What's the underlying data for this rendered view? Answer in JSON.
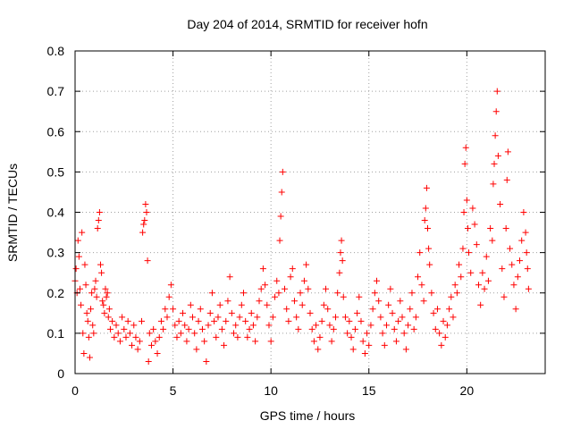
{
  "chart_data": {
    "type": "scatter",
    "title": "Day 204 of 2014, SRMTID for receiver hofn",
    "xlabel": "GPS time / hours",
    "ylabel": "SRMTID / TECUs",
    "xlim": [
      0,
      24
    ],
    "ylim": [
      0,
      0.8
    ],
    "xticks": [
      0,
      5,
      10,
      15,
      20
    ],
    "yticks": [
      0,
      0.1,
      0.2,
      0.3,
      0.4,
      0.5,
      0.6,
      0.7,
      0.8
    ],
    "xtick_labels": [
      "0",
      "5",
      "10",
      "15",
      "20"
    ],
    "ytick_labels": [
      "0",
      "0.1",
      "0.2",
      "0.3",
      "0.4",
      "0.5",
      "0.6",
      "0.7",
      "0.8"
    ],
    "grid": true,
    "marker": "+",
    "color": "#ff0000",
    "series": [
      {
        "name": "SRMTID",
        "points": [
          [
            0.0,
            0.23
          ],
          [
            0.05,
            0.26
          ],
          [
            0.1,
            0.2
          ],
          [
            0.15,
            0.33
          ],
          [
            0.2,
            0.29
          ],
          [
            0.25,
            0.21
          ],
          [
            0.3,
            0.17
          ],
          [
            0.35,
            0.35
          ],
          [
            0.4,
            0.1
          ],
          [
            0.45,
            0.05
          ],
          [
            0.5,
            0.27
          ],
          [
            0.55,
            0.22
          ],
          [
            0.6,
            0.15
          ],
          [
            0.65,
            0.13
          ],
          [
            0.7,
            0.09
          ],
          [
            0.75,
            0.04
          ],
          [
            0.8,
            0.16
          ],
          [
            0.85,
            0.2
          ],
          [
            0.9,
            0.12
          ],
          [
            0.95,
            0.1
          ],
          [
            1.0,
            0.21
          ],
          [
            1.05,
            0.23
          ],
          [
            1.1,
            0.19
          ],
          [
            1.15,
            0.36
          ],
          [
            1.2,
            0.38
          ],
          [
            1.25,
            0.4
          ],
          [
            1.3,
            0.27
          ],
          [
            1.35,
            0.25
          ],
          [
            1.4,
            0.18
          ],
          [
            1.45,
            0.17
          ],
          [
            1.5,
            0.15
          ],
          [
            1.55,
            0.21
          ],
          [
            1.6,
            0.19
          ],
          [
            1.65,
            0.2
          ],
          [
            1.7,
            0.14
          ],
          [
            1.75,
            0.16
          ],
          [
            1.8,
            0.11
          ],
          [
            1.9,
            0.13
          ],
          [
            2.0,
            0.09
          ],
          [
            2.1,
            0.12
          ],
          [
            2.2,
            0.1
          ],
          [
            2.3,
            0.08
          ],
          [
            2.4,
            0.14
          ],
          [
            2.5,
            0.11
          ],
          [
            2.6,
            0.09
          ],
          [
            2.7,
            0.13
          ],
          [
            2.8,
            0.1
          ],
          [
            2.9,
            0.07
          ],
          [
            3.0,
            0.12
          ],
          [
            3.1,
            0.09
          ],
          [
            3.2,
            0.06
          ],
          [
            3.3,
            0.08
          ],
          [
            3.4,
            0.13
          ],
          [
            3.45,
            0.35
          ],
          [
            3.5,
            0.37
          ],
          [
            3.55,
            0.38
          ],
          [
            3.6,
            0.42
          ],
          [
            3.65,
            0.4
          ],
          [
            3.7,
            0.28
          ],
          [
            3.75,
            0.03
          ],
          [
            3.8,
            0.1
          ],
          [
            3.9,
            0.07
          ],
          [
            4.0,
            0.11
          ],
          [
            4.1,
            0.08
          ],
          [
            4.2,
            0.05
          ],
          [
            4.3,
            0.09
          ],
          [
            4.4,
            0.13
          ],
          [
            4.5,
            0.11
          ],
          [
            4.6,
            0.16
          ],
          [
            4.7,
            0.14
          ],
          [
            4.8,
            0.19
          ],
          [
            4.9,
            0.22
          ],
          [
            5.0,
            0.16
          ],
          [
            5.1,
            0.12
          ],
          [
            5.2,
            0.09
          ],
          [
            5.3,
            0.13
          ],
          [
            5.4,
            0.1
          ],
          [
            5.5,
            0.15
          ],
          [
            5.6,
            0.12
          ],
          [
            5.7,
            0.08
          ],
          [
            5.8,
            0.11
          ],
          [
            5.9,
            0.17
          ],
          [
            6.0,
            0.14
          ],
          [
            6.1,
            0.1
          ],
          [
            6.2,
            0.06
          ],
          [
            6.3,
            0.13
          ],
          [
            6.4,
            0.16
          ],
          [
            6.5,
            0.11
          ],
          [
            6.6,
            0.08
          ],
          [
            6.7,
            0.03
          ],
          [
            6.8,
            0.12
          ],
          [
            6.9,
            0.15
          ],
          [
            7.0,
            0.2
          ],
          [
            7.1,
            0.13
          ],
          [
            7.2,
            0.09
          ],
          [
            7.3,
            0.14
          ],
          [
            7.4,
            0.17
          ],
          [
            7.5,
            0.11
          ],
          [
            7.6,
            0.07
          ],
          [
            7.7,
            0.13
          ],
          [
            7.8,
            0.18
          ],
          [
            7.9,
            0.24
          ],
          [
            8.0,
            0.15
          ],
          [
            8.1,
            0.1
          ],
          [
            8.2,
            0.12
          ],
          [
            8.3,
            0.09
          ],
          [
            8.4,
            0.14
          ],
          [
            8.5,
            0.17
          ],
          [
            8.6,
            0.2
          ],
          [
            8.7,
            0.13
          ],
          [
            8.8,
            0.09
          ],
          [
            8.9,
            0.11
          ],
          [
            9.0,
            0.15
          ],
          [
            9.1,
            0.12
          ],
          [
            9.2,
            0.08
          ],
          [
            9.3,
            0.14
          ],
          [
            9.4,
            0.18
          ],
          [
            9.5,
            0.21
          ],
          [
            9.6,
            0.26
          ],
          [
            9.7,
            0.22
          ],
          [
            9.8,
            0.17
          ],
          [
            9.9,
            0.12
          ],
          [
            10.0,
            0.08
          ],
          [
            10.1,
            0.14
          ],
          [
            10.2,
            0.19
          ],
          [
            10.3,
            0.23
          ],
          [
            10.4,
            0.2
          ],
          [
            10.45,
            0.33
          ],
          [
            10.5,
            0.39
          ],
          [
            10.55,
            0.45
          ],
          [
            10.6,
            0.5
          ],
          [
            10.7,
            0.21
          ],
          [
            10.8,
            0.16
          ],
          [
            10.9,
            0.13
          ],
          [
            11.0,
            0.24
          ],
          [
            11.1,
            0.26
          ],
          [
            11.2,
            0.18
          ],
          [
            11.3,
            0.14
          ],
          [
            11.4,
            0.11
          ],
          [
            11.5,
            0.2
          ],
          [
            11.6,
            0.17
          ],
          [
            11.7,
            0.23
          ],
          [
            11.8,
            0.27
          ],
          [
            11.9,
            0.21
          ],
          [
            12.0,
            0.15
          ],
          [
            12.1,
            0.11
          ],
          [
            12.2,
            0.08
          ],
          [
            12.3,
            0.12
          ],
          [
            12.4,
            0.06
          ],
          [
            12.5,
            0.09
          ],
          [
            12.6,
            0.13
          ],
          [
            12.7,
            0.17
          ],
          [
            12.8,
            0.21
          ],
          [
            12.9,
            0.16
          ],
          [
            13.0,
            0.12
          ],
          [
            13.1,
            0.08
          ],
          [
            13.2,
            0.11
          ],
          [
            13.3,
            0.14
          ],
          [
            13.4,
            0.2
          ],
          [
            13.5,
            0.25
          ],
          [
            13.55,
            0.3
          ],
          [
            13.6,
            0.33
          ],
          [
            13.65,
            0.28
          ],
          [
            13.7,
            0.19
          ],
          [
            13.8,
            0.14
          ],
          [
            13.9,
            0.1
          ],
          [
            14.0,
            0.13
          ],
          [
            14.1,
            0.09
          ],
          [
            14.2,
            0.06
          ],
          [
            14.3,
            0.11
          ],
          [
            14.4,
            0.15
          ],
          [
            14.5,
            0.19
          ],
          [
            14.6,
            0.13
          ],
          [
            14.7,
            0.08
          ],
          [
            14.8,
            0.05
          ],
          [
            14.9,
            0.1
          ],
          [
            15.0,
            0.07
          ],
          [
            15.1,
            0.12
          ],
          [
            15.2,
            0.16
          ],
          [
            15.3,
            0.2
          ],
          [
            15.4,
            0.23
          ],
          [
            15.5,
            0.18
          ],
          [
            15.6,
            0.14
          ],
          [
            15.7,
            0.1
          ],
          [
            15.8,
            0.07
          ],
          [
            15.9,
            0.12
          ],
          [
            16.0,
            0.17
          ],
          [
            16.1,
            0.21
          ],
          [
            16.2,
            0.15
          ],
          [
            16.3,
            0.11
          ],
          [
            16.4,
            0.08
          ],
          [
            16.5,
            0.13
          ],
          [
            16.6,
            0.18
          ],
          [
            16.7,
            0.14
          ],
          [
            16.8,
            0.1
          ],
          [
            16.9,
            0.06
          ],
          [
            17.0,
            0.12
          ],
          [
            17.1,
            0.16
          ],
          [
            17.2,
            0.2
          ],
          [
            17.3,
            0.11
          ],
          [
            17.4,
            0.14
          ],
          [
            17.5,
            0.24
          ],
          [
            17.6,
            0.3
          ],
          [
            17.7,
            0.22
          ],
          [
            17.8,
            0.18
          ],
          [
            17.85,
            0.38
          ],
          [
            17.9,
            0.41
          ],
          [
            17.95,
            0.46
          ],
          [
            18.0,
            0.36
          ],
          [
            18.05,
            0.31
          ],
          [
            18.1,
            0.27
          ],
          [
            18.2,
            0.2
          ],
          [
            18.3,
            0.15
          ],
          [
            18.4,
            0.11
          ],
          [
            18.5,
            0.16
          ],
          [
            18.6,
            0.1
          ],
          [
            18.7,
            0.07
          ],
          [
            18.8,
            0.13
          ],
          [
            18.9,
            0.09
          ],
          [
            19.0,
            0.12
          ],
          [
            19.1,
            0.16
          ],
          [
            19.2,
            0.19
          ],
          [
            19.3,
            0.14
          ],
          [
            19.4,
            0.22
          ],
          [
            19.5,
            0.2
          ],
          [
            19.6,
            0.27
          ],
          [
            19.7,
            0.24
          ],
          [
            19.8,
            0.31
          ],
          [
            19.85,
            0.4
          ],
          [
            19.9,
            0.52
          ],
          [
            19.95,
            0.56
          ],
          [
            20.0,
            0.43
          ],
          [
            20.05,
            0.36
          ],
          [
            20.1,
            0.3
          ],
          [
            20.2,
            0.25
          ],
          [
            20.3,
            0.41
          ],
          [
            20.4,
            0.37
          ],
          [
            20.5,
            0.32
          ],
          [
            20.6,
            0.22
          ],
          [
            20.7,
            0.17
          ],
          [
            20.8,
            0.25
          ],
          [
            20.9,
            0.21
          ],
          [
            21.0,
            0.29
          ],
          [
            21.1,
            0.23
          ],
          [
            21.2,
            0.36
          ],
          [
            21.3,
            0.33
          ],
          [
            21.35,
            0.47
          ],
          [
            21.4,
            0.52
          ],
          [
            21.45,
            0.59
          ],
          [
            21.5,
            0.65
          ],
          [
            21.55,
            0.7
          ],
          [
            21.6,
            0.54
          ],
          [
            21.7,
            0.42
          ],
          [
            21.8,
            0.26
          ],
          [
            21.9,
            0.19
          ],
          [
            22.0,
            0.36
          ],
          [
            22.05,
            0.48
          ],
          [
            22.1,
            0.55
          ],
          [
            22.2,
            0.31
          ],
          [
            22.3,
            0.27
          ],
          [
            22.4,
            0.22
          ],
          [
            22.5,
            0.16
          ],
          [
            22.6,
            0.24
          ],
          [
            22.7,
            0.28
          ],
          [
            22.8,
            0.33
          ],
          [
            22.9,
            0.4
          ],
          [
            23.0,
            0.35
          ],
          [
            23.05,
            0.3
          ],
          [
            23.1,
            0.26
          ],
          [
            23.15,
            0.21
          ]
        ]
      }
    ]
  }
}
